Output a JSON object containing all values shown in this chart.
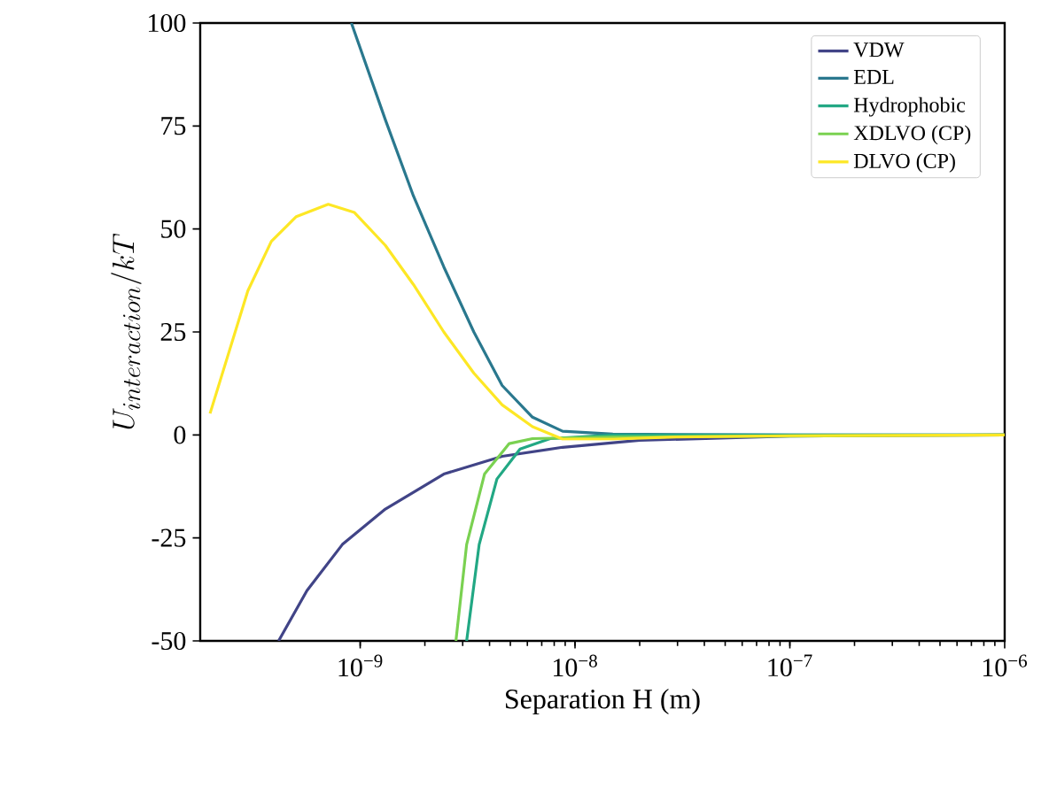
{
  "chart_data": {
    "type": "line",
    "xlabel": "Separation H (m)",
    "ylabel": "U_{interaction}/kT",
    "log": "x",
    "xlim": [
      1.8e-10,
      1e-06
    ],
    "ylim": [
      -50,
      100
    ],
    "xticks": [
      {
        "value": 1e-09,
        "label": "10$^{−9}$"
      },
      {
        "value": 1e-08,
        "label": "10$^{−8}$"
      },
      {
        "value": 1e-07,
        "label": "10$^{−7}$"
      },
      {
        "value": 1e-06,
        "label": "10$^{−6}$"
      }
    ],
    "yticks": [
      -50,
      -25,
      0,
      25,
      50,
      75,
      100
    ],
    "legend": "top right",
    "grid": false,
    "marker": "none",
    "line_style": "solid",
    "series": [
      {
        "name": "VDW",
        "color": "#414487",
        "x": [
          4.17e-10,
          5.65e-10,
          8.26e-10,
          1.31e-09,
          2.45e-09,
          4.58e-09,
          8.75e-09,
          2e-08,
          1e-07,
          1e-06
        ],
        "values": [
          -50,
          -37.8,
          -26.6,
          -18,
          -9.5,
          -5.2,
          -3,
          -1.3,
          -0.3,
          0
        ]
      },
      {
        "name": "EDL",
        "color": "#2a788e",
        "x": [
          9.1e-10,
          1.31e-09,
          1.77e-09,
          2.45e-09,
          3.38e-09,
          4.58e-09,
          6.34e-09,
          8.75e-09,
          1.5e-08,
          1e-07,
          1e-06
        ],
        "values": [
          100,
          76.5,
          58,
          40.8,
          25,
          12,
          4.3,
          0.9,
          0.2,
          0,
          0
        ]
      },
      {
        "name": "Hydrophobic",
        "color": "#22a884",
        "x": [
          3.13e-09,
          3.58e-09,
          4.33e-09,
          5.55e-09,
          7.66e-09,
          1.5e-08,
          1e-06
        ],
        "values": [
          -50,
          -26.6,
          -10.7,
          -3.4,
          -0.9,
          0,
          0
        ]
      },
      {
        "name": "XDLVO (CP)",
        "color": "#7ad151",
        "x": [
          2.79e-09,
          3.13e-09,
          3.79e-09,
          4.94e-09,
          6.34e-09,
          1.5e-08,
          1e-06
        ],
        "values": [
          -50,
          -26.6,
          -9.5,
          -2.1,
          -0.9,
          -0.5,
          0
        ]
      },
      {
        "name": "DLVO (CP)",
        "color": "#fde725",
        "x": [
          2e-10,
          3e-10,
          3.86e-10,
          5.04e-10,
          7.1e-10,
          9.4e-10,
          1.31e-09,
          1.77e-09,
          2.45e-09,
          3.38e-09,
          4.58e-09,
          6.34e-09,
          8.75e-09,
          1.5e-08,
          3e-08,
          1e-07,
          1e-06
        ],
        "values": [
          5.2,
          35,
          47,
          53,
          56,
          54,
          46,
          36.5,
          25,
          15,
          7.3,
          2,
          -1,
          -1,
          -0.5,
          -0.2,
          0
        ]
      }
    ]
  }
}
